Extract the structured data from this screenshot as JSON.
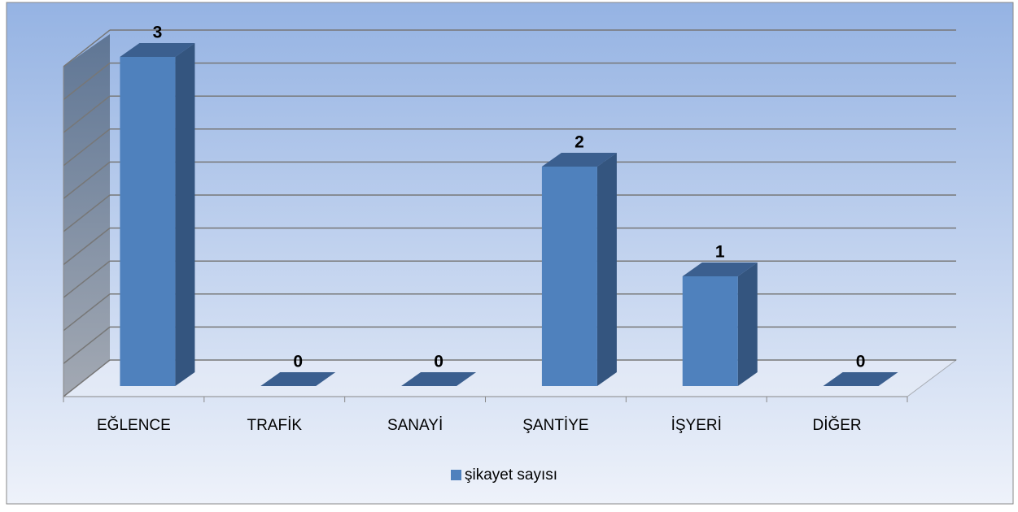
{
  "chart_data": {
    "type": "bar3d",
    "categories": [
      "EĞLENCE",
      "TRAFİK",
      "SANAYİ",
      "ŞANTİYE",
      "İŞYERİ",
      "DİĞER"
    ],
    "series": [
      {
        "name": "şikayet sayısı",
        "color": "#4f81bd",
        "values": [
          3,
          0,
          0,
          2,
          1,
          0
        ]
      }
    ],
    "ylim": [
      0,
      3
    ],
    "legend": "bottom"
  }
}
